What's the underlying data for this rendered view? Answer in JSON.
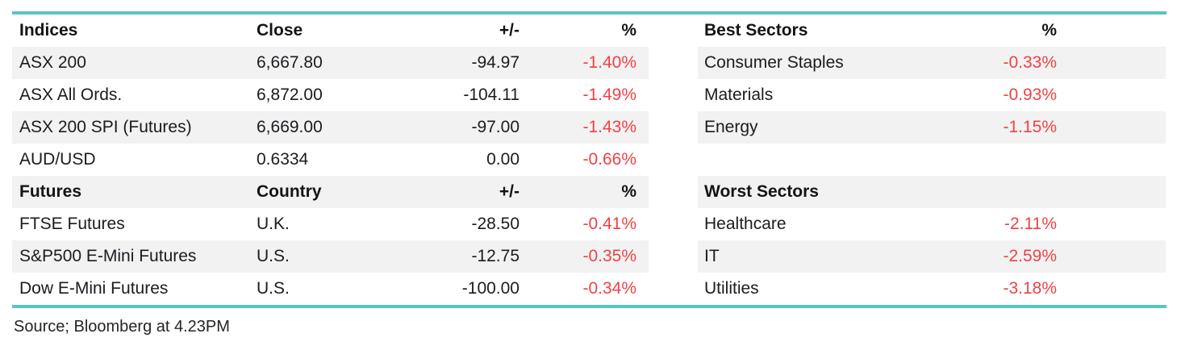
{
  "colors": {
    "teal_rule": "#58c6c2",
    "negative_red": "#f04145",
    "row_stripe": "#f2f2f2",
    "text": "#1b1b22"
  },
  "left_table": {
    "sections": [
      {
        "header": [
          "Indices",
          "Close",
          "+/-",
          "%"
        ],
        "rows": [
          {
            "name": "ASX 200",
            "value": "6,667.80",
            "change": "-94.97",
            "pct": "-1.40%"
          },
          {
            "name": "ASX All Ords.",
            "value": "6,872.00",
            "change": "-104.11",
            "pct": "-1.49%"
          },
          {
            "name": "ASX 200 SPI (Futures)",
            "value": "6,669.00",
            "change": "-97.00",
            "pct": "-1.43%"
          },
          {
            "name": "AUD/USD",
            "value": "0.6334",
            "change": "0.00",
            "pct": "-0.66%"
          }
        ]
      },
      {
        "header": [
          "Futures",
          "Country",
          "+/-",
          "%"
        ],
        "rows": [
          {
            "name": "FTSE Futures",
            "value": "U.K.",
            "change": "-28.50",
            "pct": "-0.41%"
          },
          {
            "name": "S&P500 E-Mini Futures",
            "value": "U.S.",
            "change": "-12.75",
            "pct": "-0.35%"
          },
          {
            "name": "Dow E-Mini Futures",
            "value": "U.S.",
            "change": "-100.00",
            "pct": "-0.34%"
          }
        ]
      }
    ]
  },
  "right_table": {
    "sections": [
      {
        "header": [
          "Best Sectors",
          "%"
        ],
        "spacer_after": true,
        "rows": [
          {
            "name": "Consumer Staples",
            "pct": "-0.33%"
          },
          {
            "name": "Materials",
            "pct": "-0.93%"
          },
          {
            "name": "Energy",
            "pct": "-1.15%"
          }
        ]
      },
      {
        "header": [
          "Worst Sectors",
          ""
        ],
        "rows": [
          {
            "name": "Healthcare",
            "pct": "-2.11%"
          },
          {
            "name": "IT",
            "pct": "-2.59%"
          },
          {
            "name": "Utilities",
            "pct": "-3.18%"
          }
        ]
      }
    ]
  },
  "footer": {
    "source": "Source; Bloomberg at 4.23PM"
  }
}
